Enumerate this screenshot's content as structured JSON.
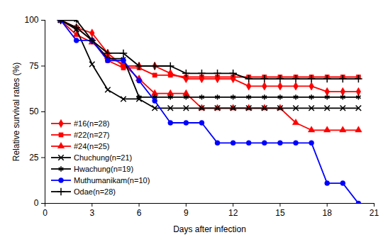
{
  "chart_data": {
    "type": "line",
    "x_label": "Days after infection",
    "y_label": "Relative survival rates (%)",
    "x": [
      1,
      2,
      3,
      4,
      5,
      6,
      7,
      8,
      9,
      10,
      11,
      12,
      13,
      14,
      15,
      16,
      17,
      18,
      19,
      20
    ],
    "series": [
      {
        "name": "#16(n=28)",
        "color": "#ff0000",
        "marker": "diamond",
        "values": [
          100,
          96,
          93,
          82,
          75,
          75,
          75,
          71,
          68,
          68,
          68,
          68,
          64,
          64,
          64,
          64,
          64,
          61,
          61,
          61
        ]
      },
      {
        "name": "#22(n=27)",
        "color": "#ff0000",
        "marker": "square",
        "values": [
          100,
          96,
          89,
          78,
          74,
          74,
          70,
          70,
          69,
          69,
          69,
          69,
          69,
          69,
          69,
          69,
          69,
          69,
          69,
          69
        ]
      },
      {
        "name": "#24(n=25)",
        "color": "#ff0000",
        "marker": "triangle",
        "values": [
          100,
          92,
          88,
          80,
          76,
          68,
          60,
          60,
          60,
          52,
          52,
          52,
          52,
          52,
          52,
          44,
          40,
          40,
          40,
          40
        ]
      },
      {
        "name": "Chuchung(n=21)",
        "color": "#000000",
        "marker": "times",
        "values": [
          100,
          95,
          76,
          62,
          57,
          57,
          52,
          52,
          52,
          52,
          52,
          52,
          52,
          52,
          52,
          52,
          52,
          52,
          52,
          52
        ]
      },
      {
        "name": "Hwachung(n=19)",
        "color": "#000000",
        "marker": "asterisk",
        "values": [
          100,
          100,
          89,
          79,
          79,
          58,
          58,
          58,
          58,
          58,
          58,
          58,
          58,
          58,
          58,
          58,
          58,
          58,
          58,
          58
        ]
      },
      {
        "name": "Muthumanikam(n=10)",
        "color": "#0000ff",
        "marker": "circle",
        "values": [
          100,
          89,
          89,
          78,
          78,
          67,
          56,
          44,
          44,
          44,
          33,
          33,
          33,
          33,
          33,
          33,
          33,
          11,
          11,
          0
        ]
      },
      {
        "name": "Odae(n=28)",
        "color": "#000000",
        "marker": "plus",
        "values": [
          100,
          96,
          89,
          82,
          82,
          75,
          75,
          75,
          71,
          71,
          71,
          71,
          68,
          68,
          68,
          68,
          68,
          68,
          68,
          68
        ]
      }
    ],
    "xlim": [
      0,
      21
    ],
    "xticks": [
      0,
      3,
      6,
      9,
      12,
      15,
      18,
      21
    ],
    "ylim": [
      0,
      100
    ],
    "yticks": [
      0,
      25,
      50,
      75,
      100
    ],
    "grid": false,
    "legend": "lower left"
  }
}
